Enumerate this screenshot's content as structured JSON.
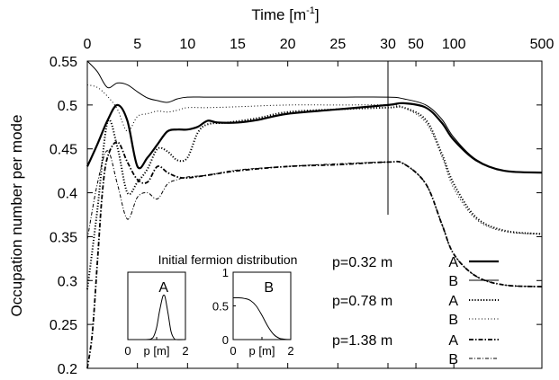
{
  "chart_data": {
    "type": "line",
    "top_axis_title": "Time [m",
    "top_axis_superscript": "-1",
    "top_axis_title_end": "]",
    "ylabel": "Occupation number per mode",
    "ylim": [
      0.2,
      0.55
    ],
    "y_ticks": [
      "0.55",
      "0.5",
      "0.45",
      "0.4",
      "0.35",
      "0.3",
      "0.25",
      "0.2"
    ],
    "y_tick_values": [
      0.55,
      0.5,
      0.45,
      0.4,
      0.35,
      0.3,
      0.25,
      0.2
    ],
    "x_scale_note": "linear 0-30, logarithmic 30-500",
    "x_break": 30,
    "xlim": [
      0,
      500
    ],
    "x_ticks": [
      "0",
      "5",
      "10",
      "15",
      "20",
      "25",
      "30",
      "50",
      "100",
      "500"
    ],
    "x_tick_values": [
      0,
      5,
      10,
      15,
      20,
      25,
      30,
      50,
      100,
      500
    ],
    "grid": false,
    "legend_placement": "bottom-right",
    "legend": [
      {
        "group": "p=0.32 m",
        "label": "A",
        "style": "solid-thick"
      },
      {
        "group": "",
        "label": "B",
        "style": "solid-thin"
      },
      {
        "group": "p=0.78 m",
        "label": "A",
        "style": "dotted-thick"
      },
      {
        "group": "",
        "label": "B",
        "style": "dotted-thin"
      },
      {
        "group": "p=1.38 m",
        "label": "A",
        "style": "dashdot-thick"
      },
      {
        "group": "",
        "label": "B",
        "style": "dashdot-thin"
      }
    ],
    "series": [
      {
        "style": "solid-thick",
        "points": [
          [
            0,
            0.43
          ],
          [
            1,
            0.455
          ],
          [
            2,
            0.482
          ],
          [
            3,
            0.5
          ],
          [
            4,
            0.482
          ],
          [
            5,
            0.43
          ],
          [
            6,
            0.44
          ],
          [
            7,
            0.455
          ],
          [
            8,
            0.47
          ],
          [
            9,
            0.472
          ],
          [
            10,
            0.472
          ],
          [
            11,
            0.475
          ],
          [
            12,
            0.482
          ],
          [
            13,
            0.48
          ],
          [
            15,
            0.48
          ],
          [
            17,
            0.483
          ],
          [
            20,
            0.49
          ],
          [
            25,
            0.495
          ],
          [
            30,
            0.5
          ],
          [
            40,
            0.502
          ],
          [
            60,
            0.497
          ],
          [
            80,
            0.48
          ],
          [
            100,
            0.46
          ],
          [
            150,
            0.437
          ],
          [
            250,
            0.425
          ],
          [
            500,
            0.423
          ]
        ]
      },
      {
        "style": "solid-thin",
        "points": [
          [
            0,
            0.553
          ],
          [
            1,
            0.538
          ],
          [
            2,
            0.52
          ],
          [
            3,
            0.525
          ],
          [
            4,
            0.523
          ],
          [
            5,
            0.515
          ],
          [
            6,
            0.508
          ],
          [
            7,
            0.505
          ],
          [
            8,
            0.503
          ],
          [
            9,
            0.507
          ],
          [
            10,
            0.509
          ],
          [
            12,
            0.509
          ],
          [
            15,
            0.509
          ],
          [
            20,
            0.509
          ],
          [
            25,
            0.509
          ],
          [
            30,
            0.509
          ],
          [
            40,
            0.507
          ],
          [
            60,
            0.5
          ],
          [
            80,
            0.484
          ],
          [
            100,
            0.463
          ],
          [
            150,
            0.438
          ],
          [
            250,
            0.425
          ],
          [
            500,
            0.423
          ]
        ]
      },
      {
        "style": "dotted-thick",
        "points": [
          [
            0,
            0.29
          ],
          [
            1,
            0.38
          ],
          [
            2,
            0.48
          ],
          [
            3,
            0.452
          ],
          [
            4,
            0.4
          ],
          [
            5,
            0.412
          ],
          [
            6,
            0.427
          ],
          [
            7,
            0.45
          ],
          [
            8,
            0.447
          ],
          [
            9,
            0.437
          ],
          [
            10,
            0.44
          ],
          [
            11,
            0.468
          ],
          [
            12,
            0.478
          ],
          [
            14,
            0.48
          ],
          [
            17,
            0.485
          ],
          [
            20,
            0.492
          ],
          [
            25,
            0.495
          ],
          [
            30,
            0.497
          ],
          [
            40,
            0.497
          ],
          [
            60,
            0.483
          ],
          [
            80,
            0.445
          ],
          [
            100,
            0.41
          ],
          [
            150,
            0.372
          ],
          [
            250,
            0.357
          ],
          [
            500,
            0.353
          ]
        ]
      },
      {
        "style": "dotted-thin",
        "points": [
          [
            0,
            0.523
          ],
          [
            1,
            0.52
          ],
          [
            2,
            0.51
          ],
          [
            3,
            0.495
          ],
          [
            4,
            0.47
          ],
          [
            5,
            0.487
          ],
          [
            6,
            0.49
          ],
          [
            7,
            0.493
          ],
          [
            8,
            0.492
          ],
          [
            9,
            0.494
          ],
          [
            10,
            0.497
          ],
          [
            12,
            0.497
          ],
          [
            15,
            0.498
          ],
          [
            20,
            0.5
          ],
          [
            25,
            0.5
          ],
          [
            30,
            0.5
          ],
          [
            40,
            0.497
          ],
          [
            60,
            0.48
          ],
          [
            80,
            0.442
          ],
          [
            100,
            0.405
          ],
          [
            150,
            0.37
          ],
          [
            250,
            0.356
          ],
          [
            500,
            0.353
          ]
        ]
      },
      {
        "style": "dashdot-thick",
        "points": [
          [
            0,
            0.2
          ],
          [
            0.5,
            0.24
          ],
          [
            1,
            0.32
          ],
          [
            1.5,
            0.4
          ],
          [
            2,
            0.44
          ],
          [
            3,
            0.458
          ],
          [
            4,
            0.435
          ],
          [
            5,
            0.415
          ],
          [
            6,
            0.412
          ],
          [
            7,
            0.43
          ],
          [
            8,
            0.423
          ],
          [
            9,
            0.418
          ],
          [
            10,
            0.417
          ],
          [
            12,
            0.42
          ],
          [
            15,
            0.425
          ],
          [
            20,
            0.43
          ],
          [
            25,
            0.432
          ],
          [
            30,
            0.435
          ],
          [
            40,
            0.433
          ],
          [
            60,
            0.41
          ],
          [
            80,
            0.365
          ],
          [
            100,
            0.33
          ],
          [
            150,
            0.305
          ],
          [
            250,
            0.295
          ],
          [
            500,
            0.293
          ]
        ]
      },
      {
        "style": "dashdot-thin",
        "points": [
          [
            0,
            0.347
          ],
          [
            1,
            0.41
          ],
          [
            2,
            0.448
          ],
          [
            3,
            0.41
          ],
          [
            4,
            0.37
          ],
          [
            5,
            0.395
          ],
          [
            6,
            0.4
          ],
          [
            7,
            0.393
          ],
          [
            8,
            0.41
          ],
          [
            9,
            0.415
          ],
          [
            10,
            0.418
          ],
          [
            12,
            0.42
          ],
          [
            15,
            0.426
          ],
          [
            20,
            0.43
          ],
          [
            25,
            0.433
          ],
          [
            30,
            0.435
          ],
          [
            40,
            0.433
          ],
          [
            60,
            0.41
          ],
          [
            80,
            0.365
          ],
          [
            100,
            0.33
          ],
          [
            150,
            0.305
          ],
          [
            250,
            0.295
          ],
          [
            500,
            0.293
          ]
        ]
      }
    ],
    "inset": {
      "title": "Initial fermion distribution",
      "panels": [
        {
          "letter": "A",
          "x_ticks": [
            "0",
            "p [m]",
            "2"
          ],
          "curve": [
            [
              0,
              0
            ],
            [
              0.2,
              0
            ],
            [
              0.4,
              0
            ],
            [
              0.6,
              0
            ],
            [
              0.8,
              0.01
            ],
            [
              0.9,
              0.05
            ],
            [
              1.0,
              0.18
            ],
            [
              1.1,
              0.42
            ],
            [
              1.2,
              0.62
            ],
            [
              1.25,
              0.66
            ],
            [
              1.3,
              0.62
            ],
            [
              1.4,
              0.38
            ],
            [
              1.5,
              0.12
            ],
            [
              1.6,
              0.02
            ],
            [
              1.7,
              0
            ],
            [
              2,
              0
            ]
          ]
        },
        {
          "letter": "B",
          "x_ticks": [
            "0",
            "p [m]",
            "2"
          ],
          "y_ticks": [
            "1",
            "0.5",
            "0"
          ],
          "y_tick_values": [
            1,
            0.5,
            0
          ],
          "curve": [
            [
              0,
              0.62
            ],
            [
              0.2,
              0.62
            ],
            [
              0.4,
              0.61
            ],
            [
              0.6,
              0.58
            ],
            [
              0.8,
              0.5
            ],
            [
              1.0,
              0.36
            ],
            [
              1.2,
              0.2
            ],
            [
              1.4,
              0.08
            ],
            [
              1.6,
              0.02
            ],
            [
              1.8,
              0.005
            ],
            [
              2,
              0
            ]
          ]
        }
      ]
    }
  }
}
